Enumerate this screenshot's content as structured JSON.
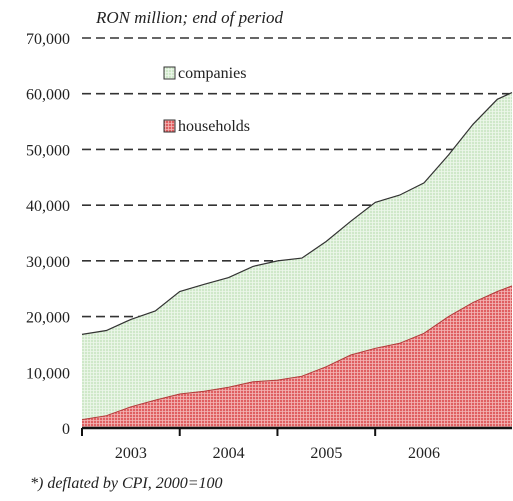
{
  "unit_note": "RON million; end of period",
  "footnote": "*) deflated by CPI, 2000=100",
  "chart_data": {
    "type": "area",
    "stacked": true,
    "ylim": [
      0,
      70000
    ],
    "yticks": [
      0,
      10000,
      20000,
      30000,
      40000,
      50000,
      60000,
      70000
    ],
    "ytick_labels": [
      "0",
      "10,000",
      "20,000",
      "30,000",
      "40,000",
      "50,000",
      "60,000",
      "70,000"
    ],
    "xlim": [
      2002.5,
      2006.9
    ],
    "x_boundaries": [
      2003.5,
      2004.5,
      2005.5
    ],
    "categories": [
      "2003",
      "2004",
      "2005",
      "2006"
    ],
    "category_centers": [
      2003,
      2004,
      2005,
      2006
    ],
    "grid": "dashed horizontal",
    "legend_position": "top-left",
    "series": [
      {
        "name": "households",
        "color": "#e26a6a",
        "pattern": "fine white grid",
        "x": [
          2002.5,
          2002.75,
          2003.0,
          2003.25,
          2003.5,
          2003.75,
          2004.0,
          2004.25,
          2004.5,
          2004.75,
          2005.0,
          2005.25,
          2005.5,
          2005.75,
          2006.0,
          2006.25,
          2006.5,
          2006.75,
          2006.9
        ],
        "values": [
          1500,
          2200,
          3800,
          5000,
          6100,
          6600,
          7300,
          8300,
          8600,
          9300,
          11000,
          13100,
          14300,
          15200,
          17000,
          20000,
          22500,
          24500,
          25500
        ]
      },
      {
        "name": "companies",
        "color": "#d7ecd2",
        "pattern": "fine white grid",
        "x": [
          2002.5,
          2002.75,
          2003.0,
          2003.25,
          2003.5,
          2003.75,
          2004.0,
          2004.25,
          2004.5,
          2004.75,
          2005.0,
          2005.25,
          2005.5,
          2005.75,
          2006.0,
          2006.25,
          2006.5,
          2006.75,
          2006.9
        ],
        "values": [
          15300,
          15300,
          15700,
          16000,
          18400,
          19200,
          19700,
          20700,
          21400,
          21200,
          22500,
          24000,
          26200,
          26600,
          27000,
          29000,
          32000,
          34500,
          34700
        ]
      }
    ]
  }
}
